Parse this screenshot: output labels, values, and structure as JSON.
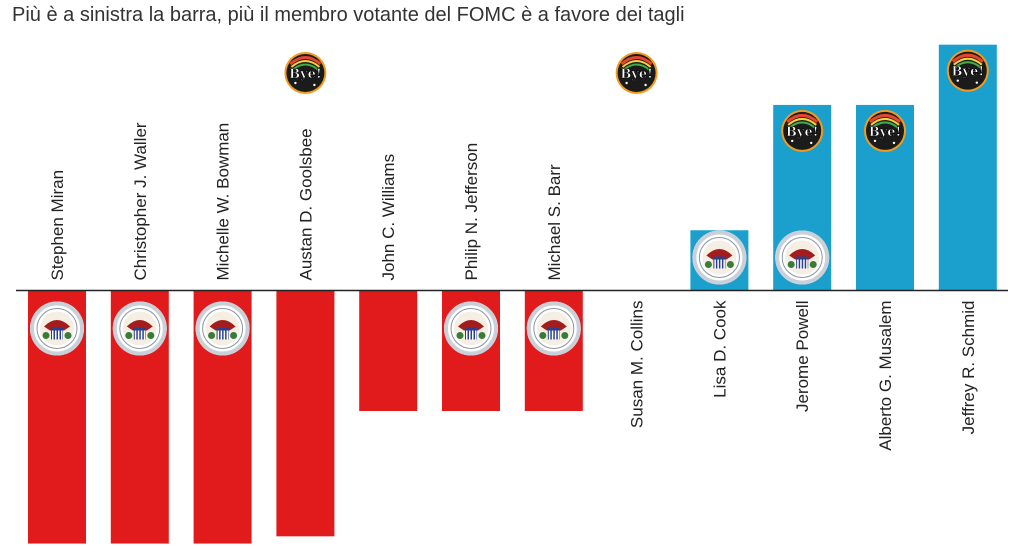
{
  "title": "Più è a sinistra la barra, più il membro votante del FOMC è a favore dei tagli",
  "colors": {
    "dovish": "#e11b1b",
    "hawkish": "#1ba0cd",
    "axis": "#222222",
    "seal_outer": "#c9d0d8",
    "seal_inner": "#a51c1c",
    "bye_bg": "#1b1b1b",
    "bye_text": "#ffffff"
  },
  "chart_data": {
    "type": "bar",
    "orientation": "vertical-diverging",
    "xlabel": "",
    "ylabel": "",
    "ylim": [
      -10.6,
      10.3
    ],
    "grid": false,
    "legend": "none",
    "categories": [
      "Stephen Miran",
      "Christopher J. Waller",
      "Michelle W. Bowman",
      "Austan D. Goolsbee",
      "John C. Williams",
      "Philip N. Jefferson",
      "Michael S. Barr",
      "Susan M. Collins",
      "Lisa D. Cook",
      "Jerome Powell",
      "Alberto G. Musalem",
      "Jeffrey R. Schmid"
    ],
    "values": [
      -10.5,
      -10.5,
      -10.5,
      -10.2,
      -5,
      -5,
      -5,
      0,
      2.5,
      7.7,
      7.7,
      10.2
    ],
    "seal_icon": [
      true,
      true,
      true,
      false,
      false,
      true,
      true,
      false,
      true,
      true,
      false,
      false
    ],
    "bye_badge": [
      false,
      false,
      false,
      true,
      false,
      false,
      false,
      true,
      false,
      true,
      true,
      true
    ],
    "badge_text": "Bye!"
  }
}
